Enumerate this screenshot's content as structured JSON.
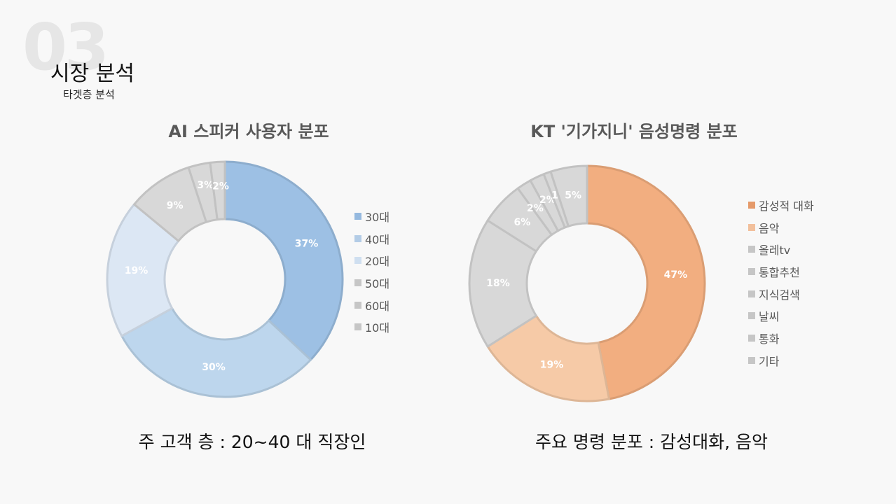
{
  "header": {
    "section_number": "03",
    "title": "시장 분석",
    "subtitle": "타겟층 분석"
  },
  "colors": {
    "blue_dark": "#95b9df",
    "blue_mid": "#bcd5ec",
    "blue_light": "#dce7f4",
    "gray": "#d6d6d6",
    "orange": "#f2ad7f",
    "orange_light": "#f6c9a6",
    "background": "#f8f8f8"
  },
  "chart_data": [
    {
      "type": "pie",
      "variant": "donut",
      "title": "AI 스피커 사용자 분포",
      "categories": [
        "30대",
        "40대",
        "20대",
        "50대",
        "60대",
        "10대"
      ],
      "values": [
        37,
        30,
        19,
        9,
        3,
        2
      ],
      "labels": [
        "37%",
        "30%",
        "19%",
        "9%",
        "3%",
        "2%"
      ],
      "slice_colors": [
        "#9dc0e4",
        "#bdd6ed",
        "#dce7f4",
        "#d8d8d8",
        "#d8d8d8",
        "#d8d8d8"
      ],
      "legend_colors": [
        "#95b9df",
        "#b3cce6",
        "#cfdff0",
        "#c6c6c6",
        "#c6c6c6",
        "#c6c6c6"
      ],
      "legend_position": "right",
      "caption": "주 고객 층 : 20~40 대 직장인"
    },
    {
      "type": "pie",
      "variant": "donut",
      "title": "KT '기가지니' 음성명령 분포",
      "categories": [
        "감성적 대화",
        "음악",
        "올레tv",
        "통합추천",
        "지식검색",
        "날씨",
        "통화",
        "기타"
      ],
      "values": [
        47,
        19,
        18,
        6,
        2,
        2,
        1,
        5
      ],
      "labels": [
        "47%",
        "19%",
        "18%",
        "6%",
        "2%",
        "2%",
        "1%",
        "5%"
      ],
      "slice_colors": [
        "#f2ae80",
        "#f6caa7",
        "#d8d8d8",
        "#d8d8d8",
        "#d8d8d8",
        "#d8d8d8",
        "#d8d8d8",
        "#d8d8d8"
      ],
      "legend_colors": [
        "#e59a6a",
        "#f2c09c",
        "#c6c6c6",
        "#c6c6c6",
        "#c6c6c6",
        "#c6c6c6",
        "#c6c6c6",
        "#c6c6c6"
      ],
      "legend_position": "right",
      "caption": "주요 명령 분포 : 감성대화, 음악"
    }
  ]
}
